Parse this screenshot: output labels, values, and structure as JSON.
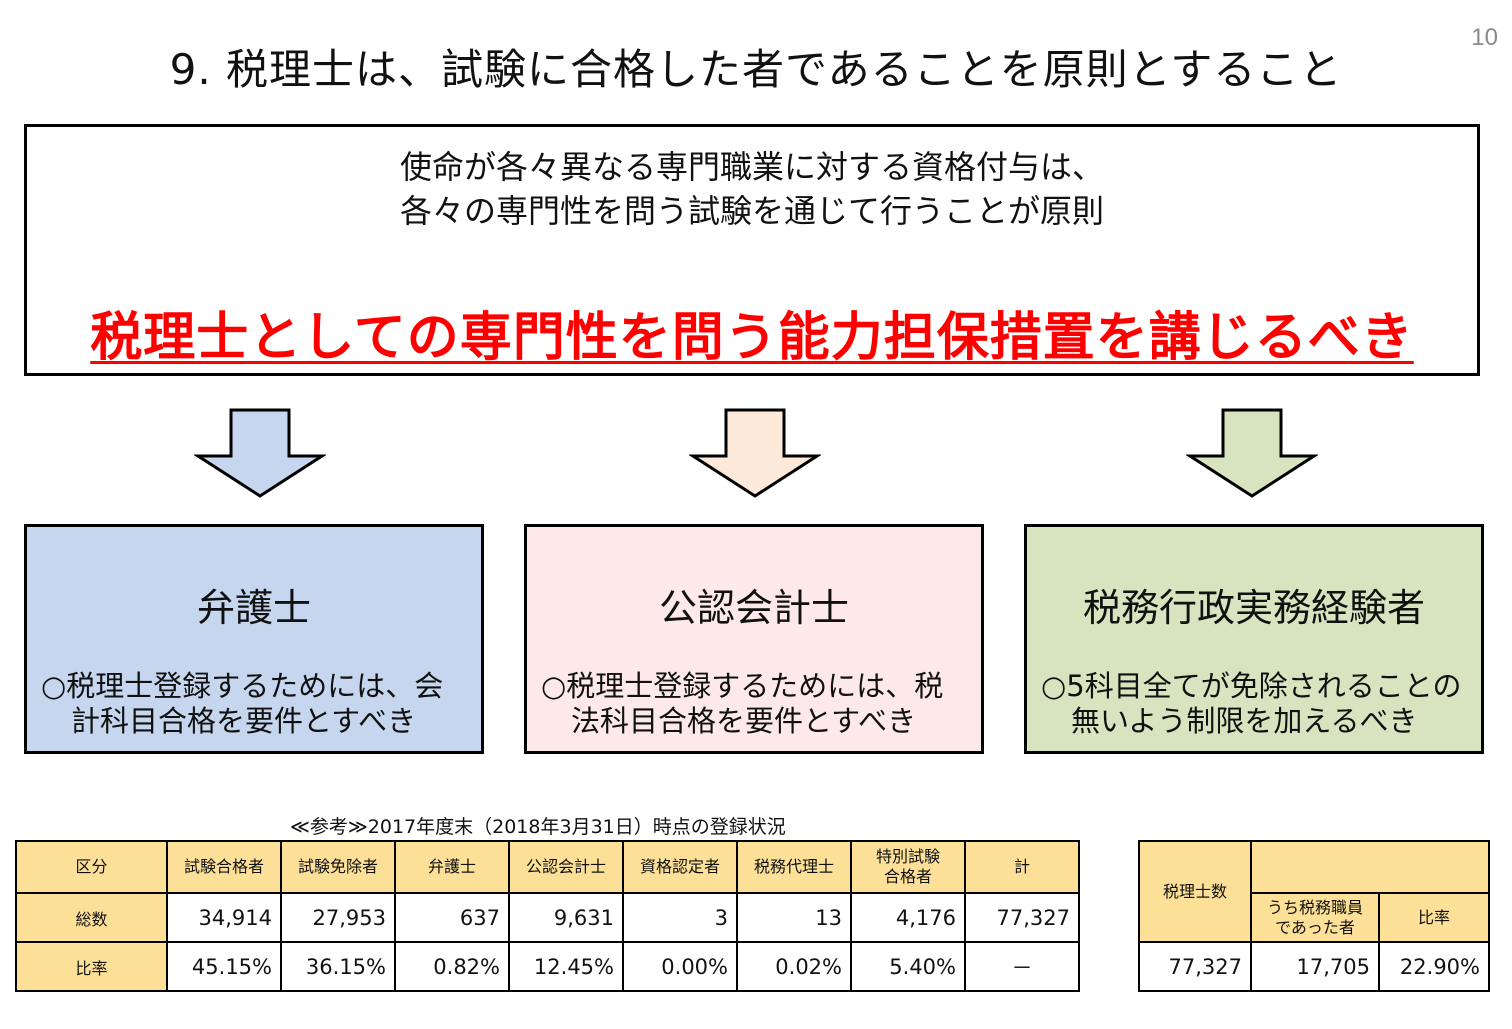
{
  "page_number": "10",
  "title": "9. 税理士は、試験に合格した者であることを原則とすること",
  "principle": {
    "line1": "使命が各々異なる専門職業に対する資格付与は、",
    "line2": "各々の専門性を問う試験を通じて行うことが原則",
    "emphasis": "税理士としての専門性を問う能力担保措置を講じるべき"
  },
  "colors": {
    "arrow1": "#c6d6ee",
    "arrow2": "#fde9d9",
    "arrow3": "#d8e3bf",
    "emphasis": "#ff0000",
    "table_header": "#fde097"
  },
  "cards": [
    {
      "title": "弁護士",
      "body1": "○税理士登録するためには、会",
      "body2": "計科目合格を要件とすべき"
    },
    {
      "title": "公認会計士",
      "body1": "○税理士登録するためには、税",
      "body2": "法科目合格を要件とすべき"
    },
    {
      "title": "税務行政実務経験者",
      "body1": "○5科目全てが免除されることの",
      "body2": "無いよう制限を加えるべき"
    }
  ],
  "reference_caption": "≪参考≫2017年度末（2018年3月31日）時点の登録状況",
  "main_table": {
    "headers": [
      "区分",
      "試験合格者",
      "試験免除者",
      "弁護士",
      "公認会計士",
      "資格認定者",
      "税務代理士",
      "特別試験\n合格者",
      "計"
    ],
    "rows": [
      {
        "label": "総数",
        "values": [
          "34,914",
          "27,953",
          "637",
          "9,631",
          "3",
          "13",
          "4,176",
          "77,327"
        ]
      },
      {
        "label": "比率",
        "values": [
          "45.15%",
          "36.15%",
          "0.82%",
          "12.45%",
          "0.00%",
          "0.02%",
          "5.40%",
          "－"
        ]
      }
    ]
  },
  "sub_table": {
    "header_main": "税理士数",
    "header_sub": "うち税務職員\nであった者",
    "header_ratio": "比率",
    "values": [
      "77,327",
      "17,705",
      "22.90%"
    ]
  }
}
